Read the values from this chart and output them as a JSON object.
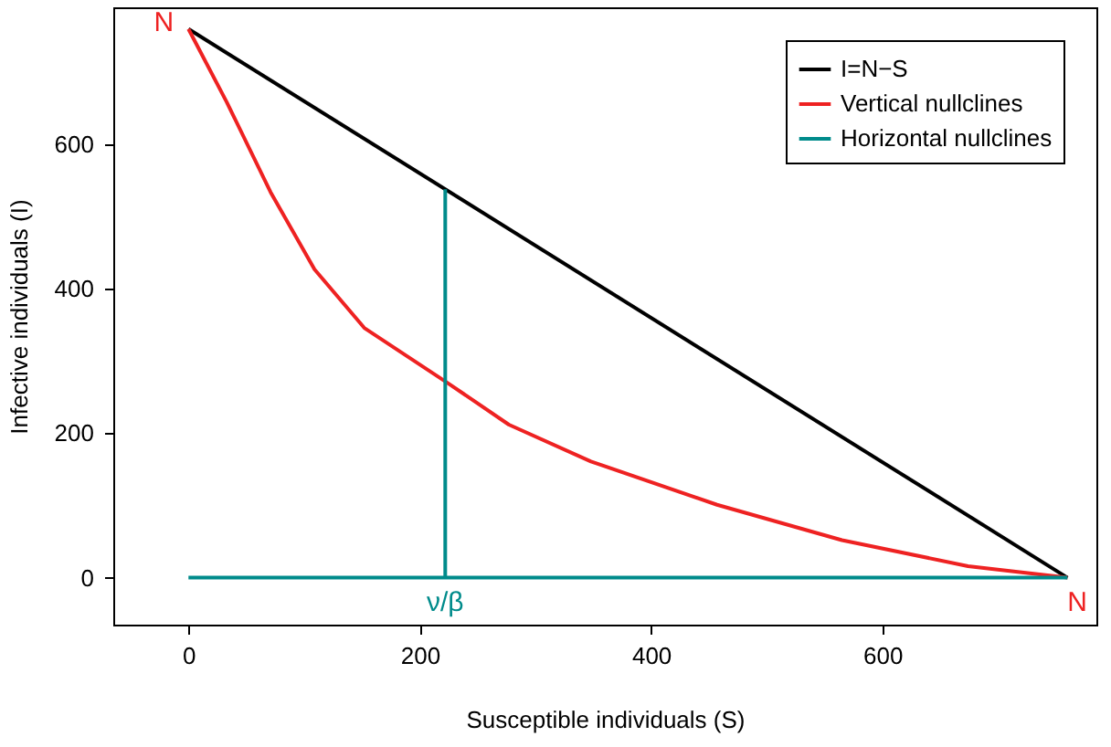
{
  "chart_data": {
    "type": "line",
    "xlabel": "Susceptible individuals (S)",
    "ylabel": "Infective individuals (I)",
    "xlim": [
      -65,
      785
    ],
    "ylim": [
      -65,
      790
    ],
    "xticks": [
      0,
      200,
      400,
      600
    ],
    "yticks": [
      0,
      200,
      400,
      600
    ],
    "grid": false,
    "legend": "top right",
    "marker": "none",
    "line_style": "solid",
    "series": [
      {
        "name": "I=N−S",
        "color": "#000000",
        "x": [
          0,
          760
        ],
        "values": [
          760,
          0
        ]
      },
      {
        "name": "Vertical nullclines",
        "color": "#ee2222",
        "x": [
          0,
          33,
          71,
          109,
          152,
          222,
          277,
          348,
          457,
          565,
          674,
          760
        ],
        "values": [
          760,
          659,
          534,
          427,
          346,
          272,
          212,
          161,
          101,
          52,
          16,
          0
        ]
      },
      {
        "name": "Horizontal nullclines",
        "color": "#008b8b",
        "x": [
          0,
          760
        ],
        "values": [
          0,
          0
        ]
      },
      {
        "color": "#008b8b",
        "x": [
          222,
          222
        ],
        "values": [
          0,
          538
        ]
      }
    ],
    "annotations": [
      {
        "text": "N",
        "x": 0,
        "y": 760
      },
      {
        "text": "N",
        "x": 760,
        "y": 0
      },
      {
        "text": "ν/β",
        "x": 222,
        "y": 0
      }
    ]
  }
}
